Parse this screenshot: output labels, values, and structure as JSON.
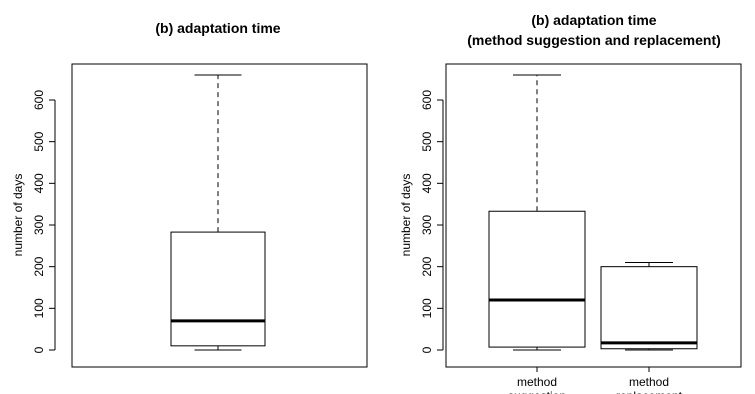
{
  "chart_data": [
    {
      "type": "boxplot",
      "title": "(b) adaptation time",
      "subtitle": "",
      "xlabel": "",
      "ylabel": "number of days",
      "ylim": [
        0,
        680
      ],
      "yticks": [
        0,
        100,
        200,
        300,
        400,
        500,
        600
      ],
      "categories": [
        ""
      ],
      "boxes": [
        {
          "min": 0,
          "q1": 10,
          "median": 70,
          "q3": 283,
          "max": 660
        }
      ]
    },
    {
      "type": "boxplot",
      "title": "(b) adaptation time",
      "subtitle": "(method suggestion and replacement)",
      "xlabel": "",
      "ylabel": "number of days",
      "ylim": [
        0,
        680
      ],
      "yticks": [
        0,
        100,
        200,
        300,
        400,
        500,
        600
      ],
      "categories": [
        [
          "method",
          "suggestion"
        ],
        [
          "method",
          "replacement"
        ]
      ],
      "boxes": [
        {
          "min": 0,
          "q1": 7,
          "median": 120,
          "q3": 333,
          "max": 660
        },
        {
          "min": 0,
          "q1": 3,
          "median": 17,
          "q3": 200,
          "max": 210
        }
      ]
    }
  ]
}
